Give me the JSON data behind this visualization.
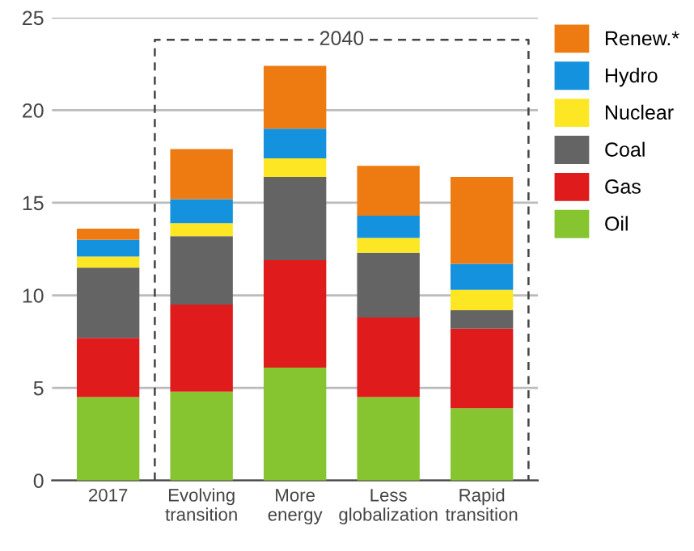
{
  "chart_data": {
    "type": "bar",
    "stacked": true,
    "categories": [
      "2017",
      "Evolving\ntransition",
      "More\nenergy",
      "Less\nglobalization",
      "Rapid\ntransition"
    ],
    "series": [
      {
        "name": "Oil",
        "color": "#86c52f",
        "values": [
          4.5,
          4.8,
          6.1,
          4.5,
          3.9
        ]
      },
      {
        "name": "Gas",
        "color": "#e01b1b",
        "values": [
          3.2,
          4.7,
          5.8,
          4.3,
          4.3
        ]
      },
      {
        "name": "Coal",
        "color": "#646464",
        "values": [
          3.8,
          3.7,
          4.5,
          3.5,
          1.0
        ]
      },
      {
        "name": "Nuclear",
        "color": "#fde725",
        "values": [
          0.6,
          0.7,
          1.0,
          0.8,
          1.1
        ]
      },
      {
        "name": "Hydro",
        "color": "#1592de",
        "values": [
          0.9,
          1.3,
          1.6,
          1.2,
          1.4
        ]
      },
      {
        "name": "Renew.*",
        "color": "#ee7b12",
        "values": [
          0.6,
          2.7,
          3.4,
          2.7,
          4.7
        ]
      }
    ],
    "ylim": [
      0,
      25
    ],
    "yticks": [
      0,
      5,
      10,
      15,
      20,
      25
    ],
    "grid": "y",
    "legend": "right",
    "annotations": [
      "2040"
    ]
  }
}
